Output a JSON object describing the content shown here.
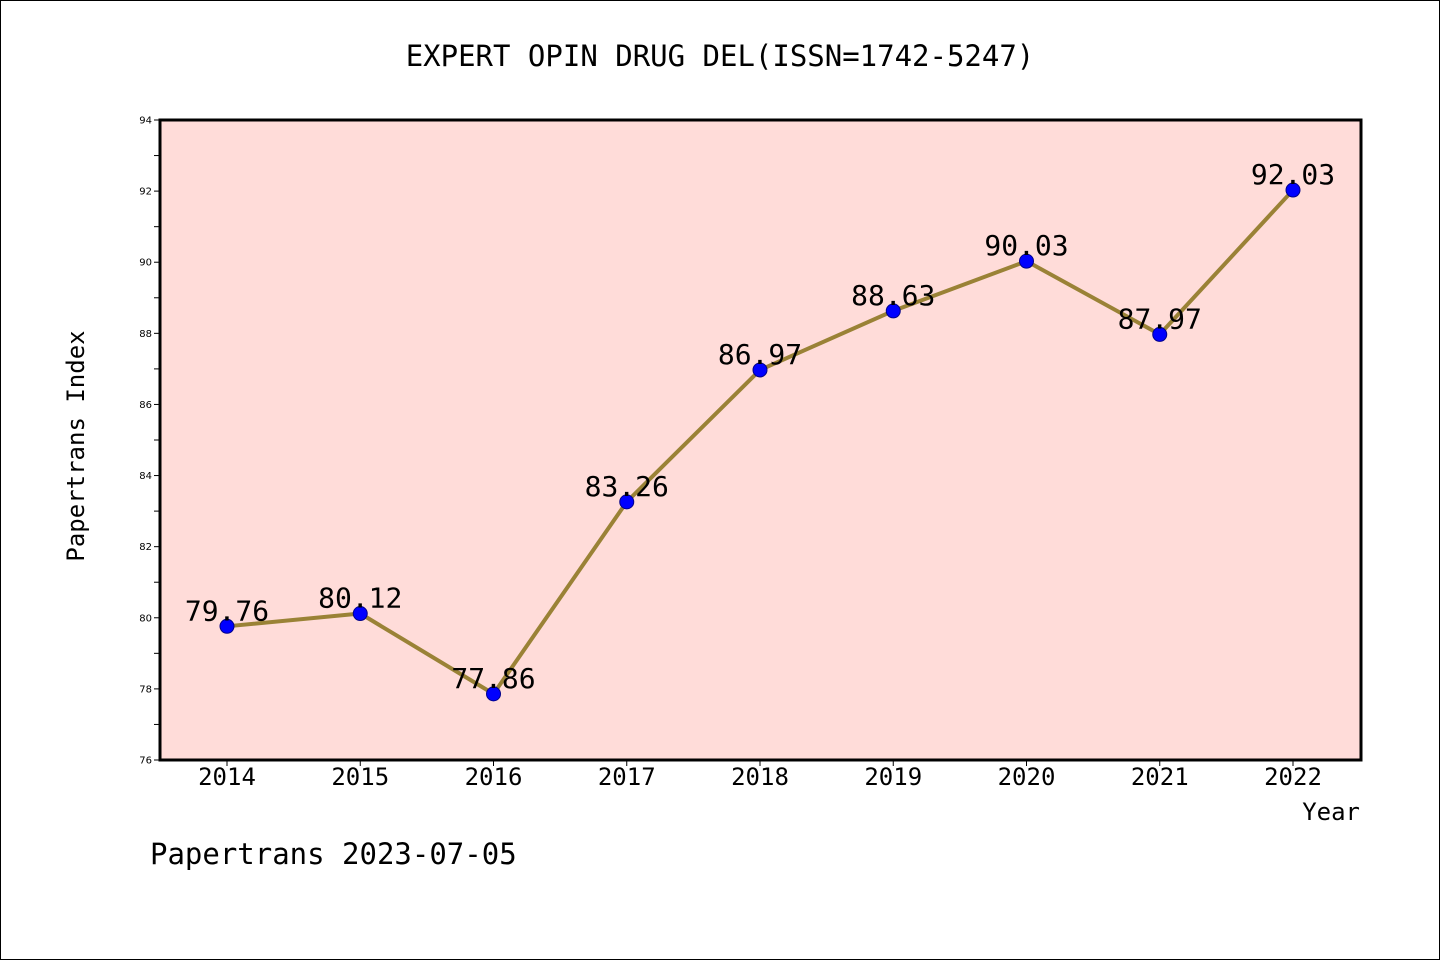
{
  "chart_data": {
    "type": "line",
    "title": "EXPERT OPIN DRUG DEL(ISSN=1742-5247)",
    "xlabel": "Year",
    "ylabel": "Papertrans Index",
    "footer": "Papertrans 2023-07-05",
    "categories": [
      "2014",
      "2015",
      "2016",
      "2017",
      "2018",
      "2019",
      "2020",
      "2021",
      "2022"
    ],
    "series": [
      {
        "values": [
          79.76,
          80.12,
          77.86,
          83.26,
          86.97,
          88.63,
          90.03,
          87.97,
          92.03
        ],
        "labels": [
          "79.76",
          "80.12",
          "77.86",
          "83.26",
          "86.97",
          "88.63",
          "90.03",
          "87.97",
          "92.03"
        ]
      }
    ],
    "ylim": [
      76,
      94
    ],
    "yticks": [
      "76",
      "78",
      "80",
      "82",
      "84",
      "86",
      "88",
      "90",
      "92",
      "94"
    ],
    "grid": false,
    "colors": {
      "plot_background": "#ffdcd9",
      "line": "#9a8236",
      "marker": "#0000ff",
      "axis": "#000000"
    }
  }
}
